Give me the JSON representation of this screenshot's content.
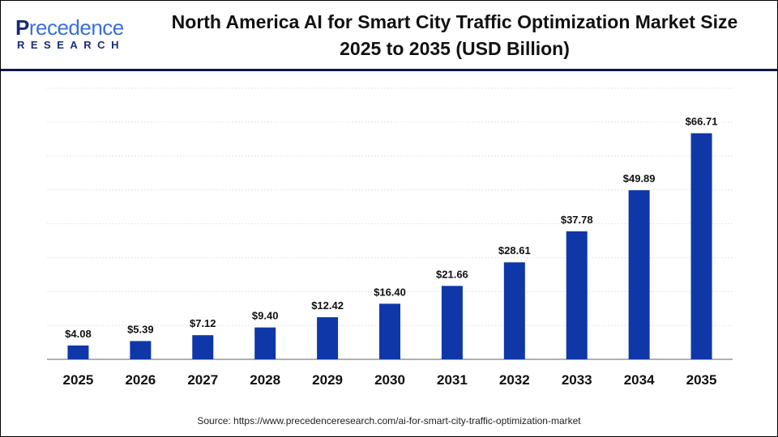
{
  "logo": {
    "line1": "Precedence",
    "line2": "RESEARCH"
  },
  "chart_data": {
    "type": "bar",
    "title": "North America AI for Smart City Traffic Optimization Market Size 2025 to 2035 (USD Billion)",
    "title_lines": [
      "North America AI for Smart City Traffic Optimization Market Size",
      "2025 to 2035 (USD Billion)"
    ],
    "categories": [
      "2025",
      "2026",
      "2027",
      "2028",
      "2029",
      "2030",
      "2031",
      "2032",
      "2033",
      "2034",
      "2035"
    ],
    "values": [
      4.08,
      5.39,
      7.12,
      9.4,
      12.42,
      16.4,
      21.66,
      28.61,
      37.78,
      49.89,
      66.71
    ],
    "data_labels": [
      "$4.08",
      "$5.39",
      "$7.12",
      "$9.40",
      "$12.42",
      "$16.40",
      "$21.66",
      "$28.61",
      "$37.78",
      "$49.89",
      "$66.71"
    ],
    "xlabel": "",
    "ylabel": "",
    "ylim": [
      0,
      80
    ],
    "grid": true,
    "bar_color": "#0f37a8"
  },
  "source": "Source: https://www.precedenceresearch.com/ai-for-smart-city-traffic-optimization-market"
}
